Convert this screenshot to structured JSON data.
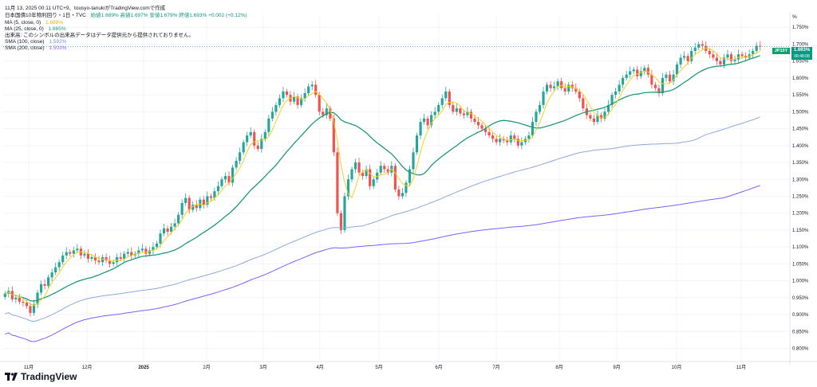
{
  "header": {
    "timestamp": "11月 13, 2025 00:11 UTC+9、tousyo-tanukiがTradingView.comで作成",
    "symbol_line": "日本国債10年物利回り・1日・TVC",
    "ohlc": "始値1.689%  高値1.697%  安値1.679%  終値1.693%  +0.002 (+0.12%)",
    "ma5": "MA (5, close, 0)",
    "ma5_val": "1.689%",
    "ma25": "MA (25, close, 0)",
    "ma25_val": "1.665%",
    "volume_note": "出来高: このシンボルの出来高データはデータ提供元から提供されておりません。",
    "sma100": "SMA (100, close)",
    "sma100_val": "1.592%",
    "sma200": "SMA (200, close)",
    "sma200_val": "1.503%",
    "unit": "%"
  },
  "price_tag": {
    "symbol": "JP10Y",
    "price": "1.693%",
    "countdown": "08:48:08"
  },
  "logo": {
    "text": "TradingView"
  },
  "colors": {
    "up": "#26a69a",
    "down": "#ef5350",
    "ma5": "#f5d020",
    "ma25": "#1f9a78",
    "sma100": "#8fa8e0",
    "sma200": "#7b61ff",
    "grid": "#f0f3fa"
  },
  "chart_data": {
    "type": "candlestick",
    "title": "日本国債10年物利回り・1日・TVC",
    "ylabel": "%",
    "ylim": [
      0.78,
      1.76
    ],
    "yticks": [
      "1.750%",
      "1.700%",
      "1.650%",
      "1.600%",
      "1.550%",
      "1.500%",
      "1.450%",
      "1.400%",
      "1.350%",
      "1.300%",
      "1.250%",
      "1.200%",
      "1.150%",
      "1.100%",
      "1.050%",
      "1.000%",
      "0.950%",
      "0.900%",
      "0.850%",
      "0.800%"
    ],
    "xticks": [
      "11月",
      "12月",
      "2025",
      "2月",
      "3月",
      "4月",
      "5月",
      "6月",
      "7月",
      "8月",
      "9月",
      "10月",
      "11月"
    ],
    "close": [
      0.962,
      0.97,
      0.945,
      0.95,
      0.938,
      0.935,
      0.925,
      0.905,
      0.93,
      0.965,
      0.99,
      0.985,
      1.01,
      1.025,
      1.04,
      1.055,
      1.075,
      1.085,
      1.08,
      1.09,
      1.095,
      1.075,
      1.08,
      1.065,
      1.07,
      1.06,
      1.055,
      1.07,
      1.06,
      1.05,
      1.055,
      1.07,
      1.065,
      1.08,
      1.085,
      1.075,
      1.08,
      1.09,
      1.095,
      1.08,
      1.09,
      1.1,
      1.11,
      1.14,
      1.155,
      1.145,
      1.16,
      1.17,
      1.195,
      1.23,
      1.245,
      1.21,
      1.225,
      1.215,
      1.24,
      1.225,
      1.25,
      1.245,
      1.265,
      1.28,
      1.3,
      1.31,
      1.29,
      1.335,
      1.355,
      1.38,
      1.41,
      1.43,
      1.44,
      1.4,
      1.39,
      1.42,
      1.44,
      1.48,
      1.5,
      1.52,
      1.54,
      1.56,
      1.55,
      1.53,
      1.545,
      1.52,
      1.54,
      1.555,
      1.575,
      1.58,
      1.55,
      1.5,
      1.49,
      1.51,
      1.48,
      1.38,
      1.2,
      1.15,
      1.25,
      1.3,
      1.33,
      1.35,
      1.32,
      1.31,
      1.33,
      1.28,
      1.3,
      1.32,
      1.34,
      1.33,
      1.32,
      1.34,
      1.27,
      1.25,
      1.26,
      1.29,
      1.33,
      1.38,
      1.43,
      1.47,
      1.48,
      1.46,
      1.49,
      1.5,
      1.52,
      1.54,
      1.56,
      1.52,
      1.5,
      1.51,
      1.495,
      1.49,
      1.5,
      1.48,
      1.47,
      1.46,
      1.45,
      1.44,
      1.43,
      1.42,
      1.41,
      1.42,
      1.415,
      1.41,
      1.43,
      1.42,
      1.4,
      1.41,
      1.42,
      1.43,
      1.47,
      1.5,
      1.52,
      1.56,
      1.58,
      1.57,
      1.575,
      1.59,
      1.57,
      1.56,
      1.58,
      1.57,
      1.56,
      1.54,
      1.51,
      1.49,
      1.48,
      1.47,
      1.49,
      1.48,
      1.5,
      1.52,
      1.55,
      1.56,
      1.58,
      1.6,
      1.61,
      1.62,
      1.625,
      1.605,
      1.62,
      1.63,
      1.61,
      1.58,
      1.57,
      1.555,
      1.6,
      1.61,
      1.59,
      1.61,
      1.64,
      1.66,
      1.665,
      1.65,
      1.68,
      1.69,
      1.7,
      1.695,
      1.68,
      1.67,
      1.66,
      1.65,
      1.64,
      1.66,
      1.67,
      1.65,
      1.655,
      1.67,
      1.665,
      1.66,
      1.67,
      1.68,
      1.695,
      1.693
    ],
    "series": [
      {
        "name": "MA (5, close, 0)",
        "value": "1.689%"
      },
      {
        "name": "MA (25, close, 0)",
        "value": "1.665%"
      },
      {
        "name": "SMA (100, close)",
        "value": "1.592%"
      },
      {
        "name": "SMA (200, close)",
        "value": "1.503%"
      }
    ],
    "last": 1.693,
    "grid": true
  }
}
